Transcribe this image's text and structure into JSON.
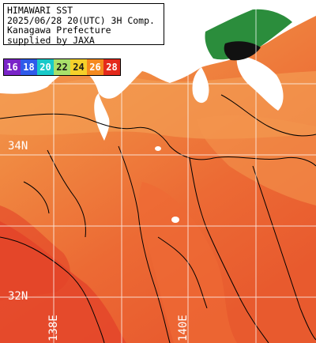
{
  "info": {
    "line1": "HIMAWARI SST",
    "line2": "2025/06/28 20(UTC) 3H Comp.",
    "line3": "Kanagawa Prefecture",
    "line4": "supplied by JAXA"
  },
  "legend": [
    {
      "label": "16",
      "color": "#7a24c8"
    },
    {
      "label": "18",
      "color": "#2f5bea"
    },
    {
      "label": "20",
      "color": "#18c9c9"
    },
    {
      "label": "22",
      "color": "#a8e06a"
    },
    {
      "label": "24",
      "color": "#f5d02a"
    },
    {
      "label": "26",
      "color": "#f58a1e"
    },
    {
      "label": "28",
      "color": "#e42a1c"
    }
  ],
  "grid_labels": {
    "lat_34": "34N",
    "lat_32": "32N",
    "lon_140": "140E",
    "lon_138": "138E"
  },
  "colors": {
    "land": "#ffffff",
    "sea_main": "#f07a3c",
    "sea_warm": "#e8502a",
    "sea_cool": "#f4a056",
    "cloud": "#1f8a3a"
  }
}
